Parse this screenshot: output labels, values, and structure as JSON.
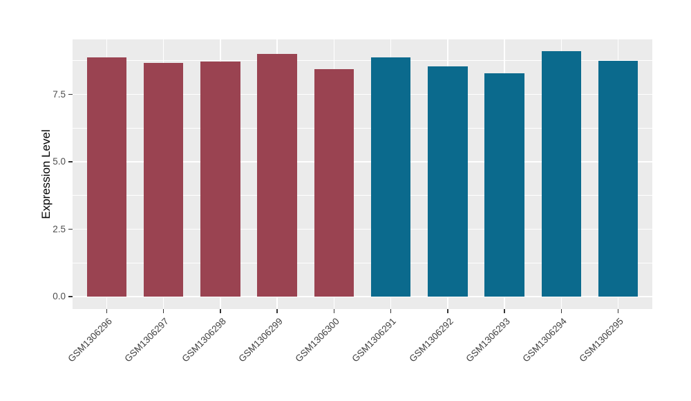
{
  "chart_data": {
    "type": "bar",
    "title": "",
    "xlabel": "",
    "ylabel": "Expression Level",
    "categories": [
      "GSM1306296",
      "GSM1306297",
      "GSM1306298",
      "GSM1306299",
      "GSM1306300",
      "GSM1306291",
      "GSM1306292",
      "GSM1306293",
      "GSM1306294",
      "GSM1306295"
    ],
    "values": [
      8.88,
      8.68,
      8.73,
      9.0,
      8.45,
      8.87,
      8.54,
      8.28,
      9.1,
      8.74
    ],
    "bar_colors": [
      "#9A4351",
      "#9A4351",
      "#9A4351",
      "#9A4351",
      "#9A4351",
      "#0B6A8D",
      "#0B6A8D",
      "#0B6A8D",
      "#0B6A8D",
      "#0B6A8D"
    ],
    "color_groups": {
      "maroon": {
        "hex": "#9A4351",
        "categories": [
          "GSM1306296",
          "GSM1306297",
          "GSM1306298",
          "GSM1306299",
          "GSM1306300"
        ]
      },
      "teal": {
        "hex": "#0B6A8D",
        "categories": [
          "GSM1306291",
          "GSM1306292",
          "GSM1306293",
          "GSM1306294",
          "GSM1306295"
        ]
      }
    },
    "y_ticks": [
      0.0,
      2.5,
      5.0,
      7.5
    ],
    "y_tick_labels": [
      "0.0",
      "2.5",
      "5.0",
      "7.5"
    ],
    "y_minor_ticks": [
      1.25,
      3.75,
      6.25,
      8.75
    ],
    "ylim": [
      -0.46,
      9.54
    ],
    "x_label_rotation_deg": -45,
    "grid": true,
    "legend_position": "none",
    "panel_background": "#EBEBEB",
    "grid_color": "#FFFFFF",
    "tick_color": "#333333",
    "axis_text_color": "#4D4D4D",
    "axis_title_color": "#000000"
  }
}
